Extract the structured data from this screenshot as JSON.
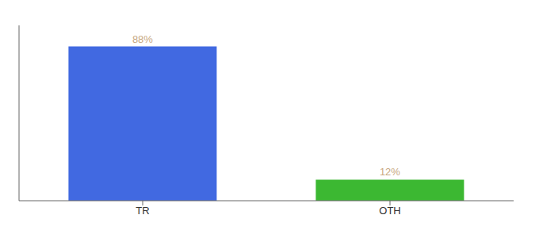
{
  "chart_data": {
    "type": "bar",
    "categories": [
      "TR",
      "OTH"
    ],
    "values": [
      88,
      12
    ],
    "value_labels": [
      "88%",
      "12%"
    ],
    "colors": [
      "#4169e1",
      "#3cb832"
    ],
    "data_labels": true,
    "ylim": [
      0,
      100
    ],
    "tick_labels": "x"
  }
}
